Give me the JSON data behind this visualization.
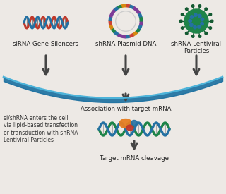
{
  "bg_color": "#ede9e5",
  "labels": {
    "sirna": "siRNA Gene Silencers",
    "shrna_plasmid": "shRNA Plasmid DNA",
    "shrna_lentiviral": "shRNA Lentiviral\nParticles",
    "association": "Association with target mRNA",
    "cell_entry": "si/shRNA enters the cell\nvia lipid-based transfection\nor transduction with shRNA\nLentiviral Particles",
    "cleavage": "Target mRNA cleavage"
  },
  "arrow_color": "#444444",
  "arc_dark": "#1a6fa0",
  "arc_light": "#4db3d9",
  "dna_red": "#c0392b",
  "dna_blue": "#2471a3",
  "plasmid_colors": [
    "#7d3c98",
    "#2471a3",
    "#1e8449",
    "#d68910",
    "#cb4335",
    "#2471a3",
    "#7d3c98"
  ],
  "virus_green": "#1e8449",
  "virus_spot": "#2471a3",
  "mrna_green": "#1e8449",
  "mrna_blue": "#2471a3",
  "label_fontsize": 6.2,
  "small_fontsize": 5.5,
  "risc_orange": "#e67e22",
  "risc_red": "#c0392b",
  "risc_blue": "#2471a3"
}
